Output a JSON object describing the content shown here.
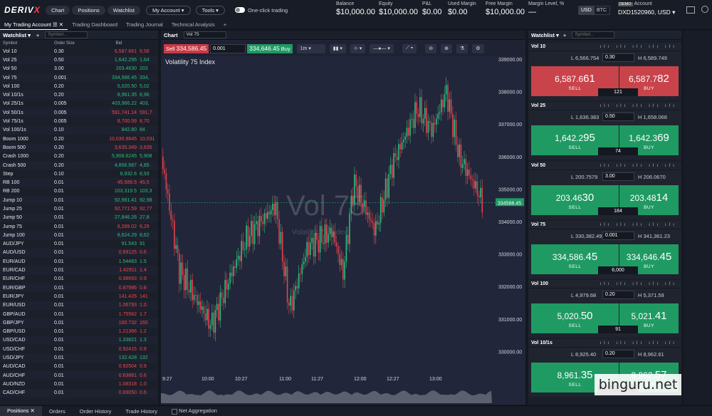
{
  "header": {
    "logo_a": "DERIV",
    "logo_b": "X",
    "chart": "Chart",
    "positions": "Positions",
    "watchlist": "Watchlist",
    "my_account": "My Account",
    "tools": "Tools",
    "one_click": "One-click trading",
    "metrics": [
      {
        "l": "Balance",
        "v": "$10,000.00"
      },
      {
        "l": "Equity",
        "v": "$10,000.00"
      },
      {
        "l": "P&L",
        "v": "$0.00"
      },
      {
        "l": "Used Margin",
        "v": "$0.00"
      },
      {
        "l": "Free Margin",
        "v": "$10,000.00"
      },
      {
        "l": "Margin Level, %",
        "v": "—"
      }
    ],
    "usd": "USD",
    "btc": "BTC",
    "demo": "DEMO",
    "account_label": "Account",
    "account": "DXD1520960, USD"
  },
  "tabs": [
    "My Trading Account",
    "Trading Dashboard",
    "Trading Journal",
    "Technical Analysis"
  ],
  "watchlist": {
    "title": "Watchlist",
    "symbol_ph": "Symbol...",
    "cols": [
      "Symbol",
      "Order Size",
      "Bid"
    ],
    "rows": [
      [
        "Vol 10",
        "0.30",
        "6,587.661",
        "6,58",
        "dn"
      ],
      [
        "Vol 25",
        "0.50",
        "1,642.295",
        "1,64",
        "up"
      ],
      [
        "Vol 50",
        "3.00",
        "203.4630",
        "203",
        "up"
      ],
      [
        "Vol 75",
        "0.001",
        "334,586.45",
        "334,",
        "up"
      ],
      [
        "Vol 100",
        "0.20",
        "5,020.50",
        "5,02",
        "up"
      ],
      [
        "Vol 10/1s",
        "0.20",
        "8,961.35",
        "8,96",
        "up"
      ],
      [
        "Vol 25/1s",
        "0.005",
        "403,966.22",
        "403,",
        "up"
      ],
      [
        "Vol 50/1s",
        "0.005",
        "591,741.14",
        "591,7",
        "dn"
      ],
      [
        "Vol 75/1s",
        "0.005",
        "8,700.59",
        "8,70",
        "dn"
      ],
      [
        "Vol 100/1s",
        "0.10",
        "842.80",
        "84",
        "up"
      ],
      [
        "Boom 1000",
        "0.20",
        "10,030.9845",
        "10,031",
        "dn"
      ],
      [
        "Boom 500",
        "0.20",
        "3,635.349",
        "3,635",
        "dn"
      ],
      [
        "Crash 1000",
        "0.20",
        "5,908.6245",
        "5,908",
        "up"
      ],
      [
        "Crash 500",
        "0.20",
        "4,856.987",
        "4,85",
        "up"
      ],
      [
        "Step",
        "0.10",
        "8,932.6",
        "8,93",
        "up"
      ],
      [
        "RB 100",
        "0.01",
        "45,589.5",
        "45,5",
        "dn"
      ],
      [
        "RB 200",
        "0.01",
        "103,319.5",
        "103,3",
        "up"
      ],
      [
        "Jump 10",
        "0.01",
        "92,981.41",
        "92,98",
        "up"
      ],
      [
        "Jump 25",
        "0.01",
        "92,771.59",
        "92,77",
        "dn"
      ],
      [
        "Jump 50",
        "0.01",
        "27,846.26",
        "27,8",
        "up"
      ],
      [
        "Jump 75",
        "0.01",
        "6,289.02",
        "6,29",
        "dn"
      ],
      [
        "Jump 100",
        "0.01",
        "8,624.29",
        "8,62",
        "up"
      ],
      [
        "AUD/JPY",
        "0.01",
        "91.543",
        "91",
        "up"
      ],
      [
        "AUD/USD",
        "0.01",
        "0.69125",
        "0.6",
        "dn"
      ],
      [
        "EUR/AUD",
        "0.01",
        "1.54483",
        "1.5",
        "up"
      ],
      [
        "EUR/CAD",
        "0.01",
        "1.42911",
        "1.4",
        "dn"
      ],
      [
        "EUR/CHF",
        "0.01",
        "0.98693",
        "0.9",
        "dn"
      ],
      [
        "EUR/GBP",
        "0.01",
        "0.87986",
        "0.8",
        "dn"
      ],
      [
        "EUR/JPY",
        "0.01",
        "141.426",
        "141",
        "dn"
      ],
      [
        "EUR/USD",
        "0.01",
        "1.06793",
        "1.0",
        "dn"
      ],
      [
        "GBP/AUD",
        "0.01",
        "1.75562",
        "1.7",
        "dn"
      ],
      [
        "GBP/JPY",
        "0.01",
        "160.732",
        "160",
        "dn"
      ],
      [
        "GBP/USD",
        "0.01",
        "1.21366",
        "1.2",
        "dn"
      ],
      [
        "USD/CAD",
        "0.01",
        "1.33821",
        "1.3",
        "up"
      ],
      [
        "USD/CHF",
        "0.01",
        "0.92415",
        "0.9",
        "dn"
      ],
      [
        "USD/JPY",
        "0.01",
        "132.428",
        "132",
        "up"
      ],
      [
        "AUD/CAD",
        "0.01",
        "0.92504",
        "0.9",
        "dn"
      ],
      [
        "AUD/CHF",
        "0.01",
        "0.63881",
        "0.6",
        "dn"
      ],
      [
        "AUD/NZD",
        "0.01",
        "1.08318",
        "1.0",
        "dn"
      ],
      [
        "CAD/CHF",
        "0.01",
        "0.69050",
        "0.6",
        "dn"
      ]
    ]
  },
  "chart": {
    "title": "Chart",
    "symbol": "Vol 75",
    "sell": "Sell",
    "sell_price": "334,586.45",
    "qty": "0.001",
    "buy_price": "334,646.45",
    "buy": "Buy",
    "tf": "1m",
    "name": "Volatility 75 Index",
    "wm1": "Vol 75",
    "wm2": "Volatility 75 Index",
    "current": "334586.45",
    "yticks": [
      "339000.00",
      "338000.00",
      "337000.00",
      "336000.00",
      "335000.00",
      "334000.00",
      "333000.00",
      "332000.00",
      "331000.00",
      "330000.00"
    ],
    "xticks": [
      "9:27",
      "10:00",
      "10:27",
      "11:00",
      "11:27",
      "12:00",
      "12:27",
      "13:00"
    ]
  },
  "right": {
    "title": "Watchlist",
    "symbol_ph": "Symbol...",
    "cards": [
      {
        "name": "Vol 10",
        "low": "L 6,566.754",
        "qty": "0.30",
        "high": "H 6,589.749",
        "sell_a": "6,587.6",
        "sell_b": "61",
        "buy_a": "6,587.7",
        "buy_b": "82",
        "spread": "121",
        "color": "#c9434b"
      },
      {
        "name": "Vol 25",
        "low": "L 1,636.383",
        "qty": "0.50",
        "high": "H 1,658.068",
        "sell_a": "1,642.2",
        "sell_b": "95",
        "buy_a": "1,642.3",
        "buy_b": "69",
        "spread": "74",
        "color": "#1f9a63"
      },
      {
        "name": "Vol 50",
        "low": "L 200.7579",
        "qty": "3.00",
        "high": "H 206.0670",
        "sell_a": "203.46",
        "sell_b": "30",
        "buy_a": "203.48",
        "buy_b": "14",
        "spread": "184",
        "color": "#1f9a63"
      },
      {
        "name": "Vol 75",
        "low": "L 330,382.49",
        "qty": "0.001",
        "high": "H 341,361.23",
        "sell_a": "334,586.",
        "sell_b": "45",
        "buy_a": "334,646.",
        "buy_b": "45",
        "spread": "6,000",
        "color": "#1f9a63"
      },
      {
        "name": "Vol 100",
        "low": "L 4,979.68",
        "qty": "0.20",
        "high": "H 5,371.59",
        "sell_a": "5,020.",
        "sell_b": "50",
        "buy_a": "5,021.",
        "buy_b": "41",
        "spread": "91",
        "color": "#1f9a63"
      },
      {
        "name": "Vol 10/1s",
        "low": "L 8,925.40",
        "qty": "0.20",
        "high": "H 8,962.61",
        "sell_a": "8,961.",
        "sell_b": "35",
        "buy_a": "8,962.",
        "buy_b": "57",
        "spread": "",
        "color": "#1f9a63"
      }
    ],
    "sell": "SELL",
    "buy": "BUY"
  },
  "bottom": [
    "Positions",
    "Orders",
    "Order History",
    "Trade History",
    "Net Aggregation"
  ],
  "watermark": "binguru.net"
}
